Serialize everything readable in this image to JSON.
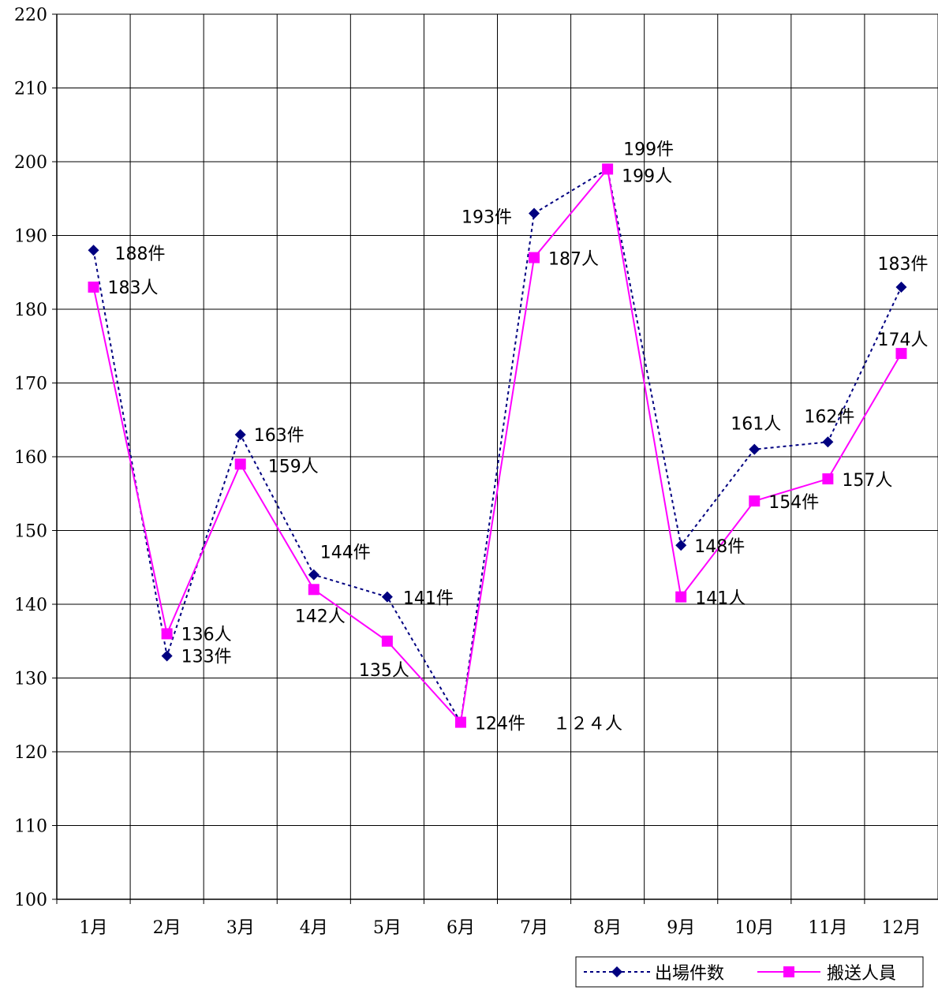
{
  "chart_data": {
    "type": "line",
    "categories": [
      "1月",
      "2月",
      "3月",
      "4月",
      "5月",
      "6月",
      "7月",
      "8月",
      "9月",
      "10月",
      "11月",
      "12月"
    ],
    "ylim": [
      100,
      220
    ],
    "yticks": [
      "100",
      "110",
      "120",
      "130",
      "140",
      "150",
      "160",
      "170",
      "180",
      "190",
      "200",
      "210",
      "220"
    ],
    "grid": true,
    "legend_position": "bottom-right",
    "series": [
      {
        "name": "出場件数",
        "values": [
          188,
          133,
          163,
          144,
          141,
          124,
          193,
          199,
          148,
          161,
          162,
          183
        ],
        "labels": [
          "188件",
          "133件",
          "163件",
          "144件",
          "141件",
          "124件",
          "193件",
          "199件",
          "148件",
          "161人",
          "162件",
          "183件"
        ],
        "color": "#000080",
        "line_style": "dotted",
        "marker": "diamond"
      },
      {
        "name": "搬送人員",
        "values": [
          183,
          136,
          159,
          142,
          135,
          124,
          187,
          199,
          141,
          154,
          157,
          174
        ],
        "labels": [
          "183人",
          "136人",
          "159人",
          "142人",
          "135人",
          "１２４人",
          "187人",
          "199人",
          "141人",
          "154件",
          "157人",
          "174人"
        ],
        "color": "#ff00ff",
        "line_style": "solid",
        "marker": "square"
      }
    ]
  }
}
